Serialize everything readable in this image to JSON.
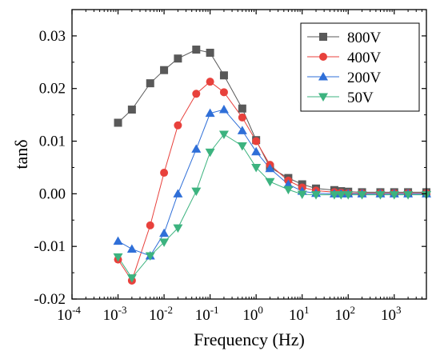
{
  "chart_data": {
    "type": "line",
    "x_scale": "log",
    "xlabel": "Frequency (Hz)",
    "ylabel": "tanδ",
    "xlim": [
      0.0001,
      5000
    ],
    "ylim": [
      -0.02,
      0.035
    ],
    "x_ticks": [
      {
        "value": 0.0001,
        "base": "10",
        "exp": "-4"
      },
      {
        "value": 0.001,
        "base": "10",
        "exp": "-3"
      },
      {
        "value": 0.01,
        "base": "10",
        "exp": "-2"
      },
      {
        "value": 0.1,
        "base": "10",
        "exp": "-1"
      },
      {
        "value": 1,
        "base": "10",
        "exp": "0"
      },
      {
        "value": 10,
        "base": "10",
        "exp": "1"
      },
      {
        "value": 100,
        "base": "10",
        "exp": "2"
      },
      {
        "value": 1000,
        "base": "10",
        "exp": "3"
      }
    ],
    "y_ticks": [
      {
        "value": -0.02,
        "label": "-0.02"
      },
      {
        "value": -0.01,
        "label": "-0.01"
      },
      {
        "value": 0.0,
        "label": "0.00"
      },
      {
        "value": 0.01,
        "label": "0.01"
      },
      {
        "value": 0.02,
        "label": "0.02"
      },
      {
        "value": 0.03,
        "label": "0.03"
      }
    ],
    "grid": false,
    "legend_position": "top-right",
    "x": [
      0.001,
      0.002,
      0.005,
      0.01,
      0.02,
      0.05,
      0.1,
      0.2,
      0.5,
      1,
      2,
      5,
      10,
      20,
      50,
      70,
      100,
      200,
      500,
      1000,
      2000,
      5000
    ],
    "series": [
      {
        "name": "800V",
        "color": "#595959",
        "marker": "square",
        "values": [
          0.0135,
          0.016,
          0.021,
          0.0235,
          0.0257,
          0.0274,
          0.0268,
          0.0225,
          0.0162,
          0.0102,
          0.005,
          0.003,
          0.0018,
          0.001,
          0.0007,
          0.0005,
          0.0004,
          0.0003,
          0.0003,
          0.0003,
          0.0003,
          0.0003
        ]
      },
      {
        "name": "400V",
        "color": "#e8413c",
        "marker": "circle",
        "values": [
          -0.0125,
          -0.0165,
          -0.006,
          0.004,
          0.013,
          0.019,
          0.0213,
          0.0193,
          0.0145,
          0.01,
          0.0055,
          0.0025,
          0.0012,
          0.0006,
          0.0003,
          0.0002,
          0.0001,
          0.0001,
          0.0001,
          0.0001,
          0.0001,
          0.0001
        ]
      },
      {
        "name": "200V",
        "color": "#2f6fd8",
        "marker": "triangle-up",
        "values": [
          -0.009,
          -0.0105,
          -0.0118,
          -0.0075,
          0.0,
          0.0085,
          0.0153,
          0.016,
          0.012,
          0.008,
          0.0048,
          0.0018,
          0.0005,
          0.0001,
          0.0,
          0.0,
          0.0,
          0.0,
          0.0,
          0.0,
          0.0,
          0.0
        ]
      },
      {
        "name": "50V",
        "color": "#3cb37f",
        "marker": "triangle-down",
        "values": [
          -0.012,
          -0.016,
          -0.0118,
          -0.0092,
          -0.0065,
          0.0005,
          0.0079,
          0.0113,
          0.0091,
          0.005,
          0.0023,
          0.0008,
          -0.0001,
          -0.0002,
          -0.0002,
          -0.0002,
          -0.0002,
          -0.0002,
          -0.0002,
          -0.0002,
          -0.0002,
          -0.0002
        ]
      }
    ]
  }
}
